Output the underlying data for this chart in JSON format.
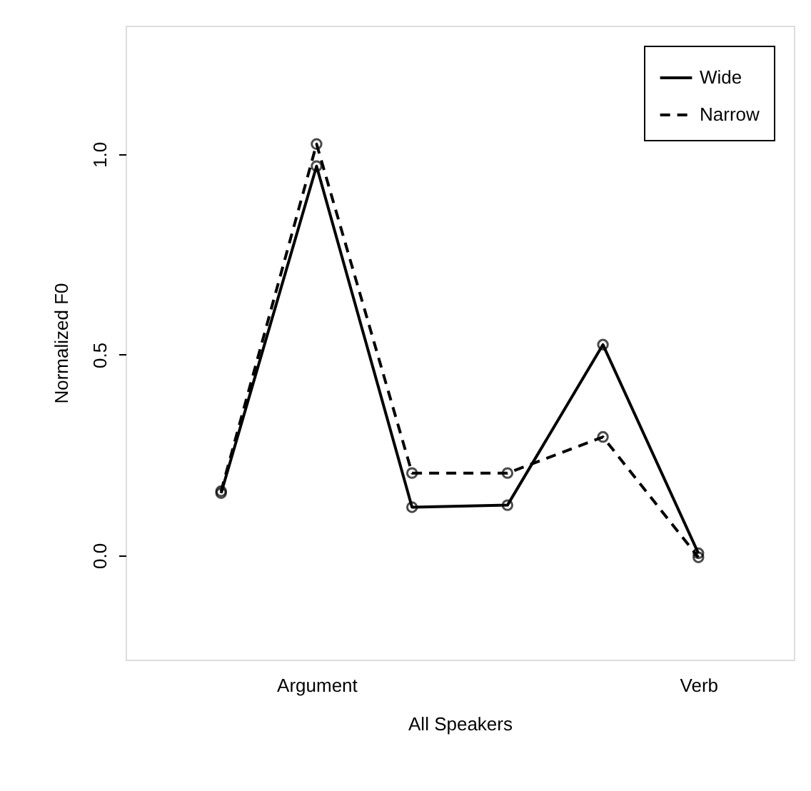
{
  "chart_data": {
    "type": "line",
    "xlabel": "All Speakers",
    "ylabel": "Normalized F0",
    "categories": [
      null,
      "Argument",
      null,
      null,
      null,
      "Verb"
    ],
    "ylim": [
      -0.26,
      1.32
    ],
    "yticks": [
      {
        "value": 0,
        "label": "0.0"
      },
      0.5,
      {
        "value": 1,
        "label": "1.0"
      }
    ],
    "series": [
      {
        "name": "Wide",
        "color": "#000000",
        "line_style": "solid",
        "values": [
          0.155,
          0.97,
          0.12,
          0.125,
          0.525,
          0.005
        ]
      },
      {
        "name": "Narrow",
        "color": "#000000",
        "line_style": "dashed",
        "values": [
          0.16,
          1.025,
          0.205,
          0.205,
          0.295,
          -0.005
        ]
      }
    ],
    "marker": "circle",
    "legend": "top right",
    "grid": false
  }
}
